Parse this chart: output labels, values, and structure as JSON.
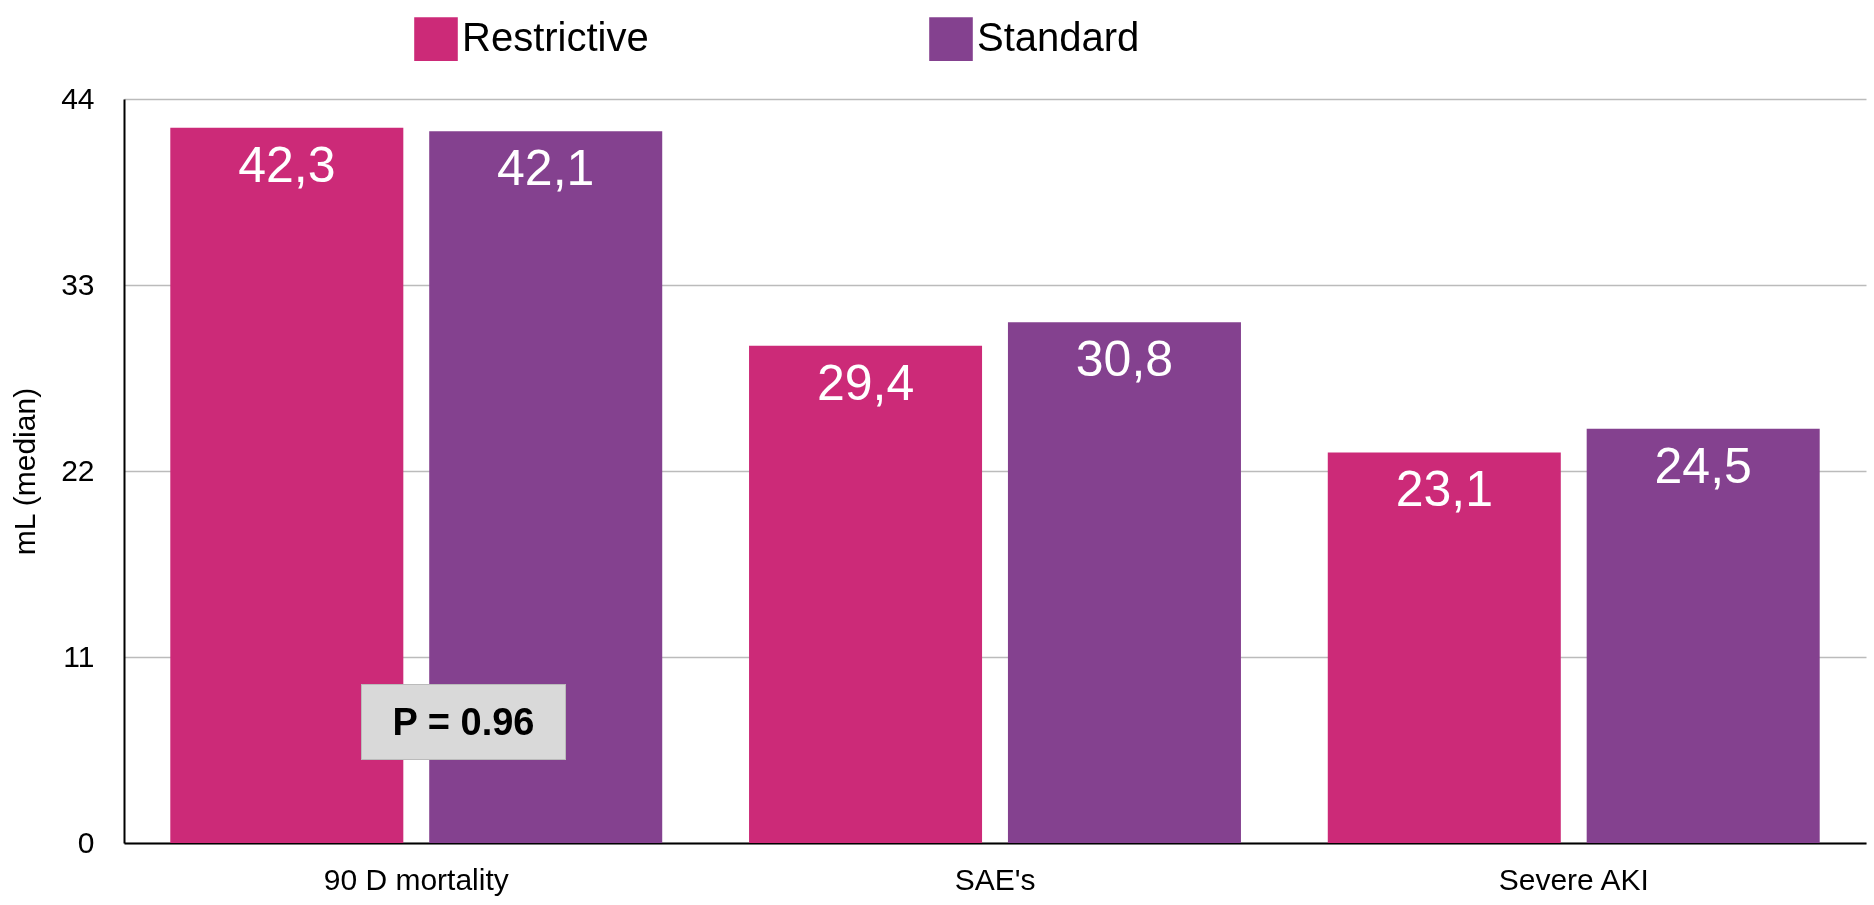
{
  "chart_data": {
    "type": "bar",
    "categories": [
      "90 D mortality",
      "SAE's",
      "Severe AKI"
    ],
    "series": [
      {
        "name": "Restrictive",
        "color": "#cc2a78",
        "values": [
          42.3,
          29.4,
          23.1
        ],
        "value_labels": [
          "42,3",
          "29,4",
          "23,1"
        ]
      },
      {
        "name": "Standard",
        "color": "#84418f",
        "values": [
          42.1,
          30.8,
          24.5
        ],
        "value_labels": [
          "42,1",
          "30,8",
          "24,5"
        ]
      }
    ],
    "ylabel": "mL (median)",
    "ylim": [
      0,
      44
    ],
    "yticks": [
      0,
      11,
      22,
      33,
      44
    ],
    "grid": "y",
    "legend": "top",
    "annotations": [
      "P = 0.96"
    ]
  }
}
